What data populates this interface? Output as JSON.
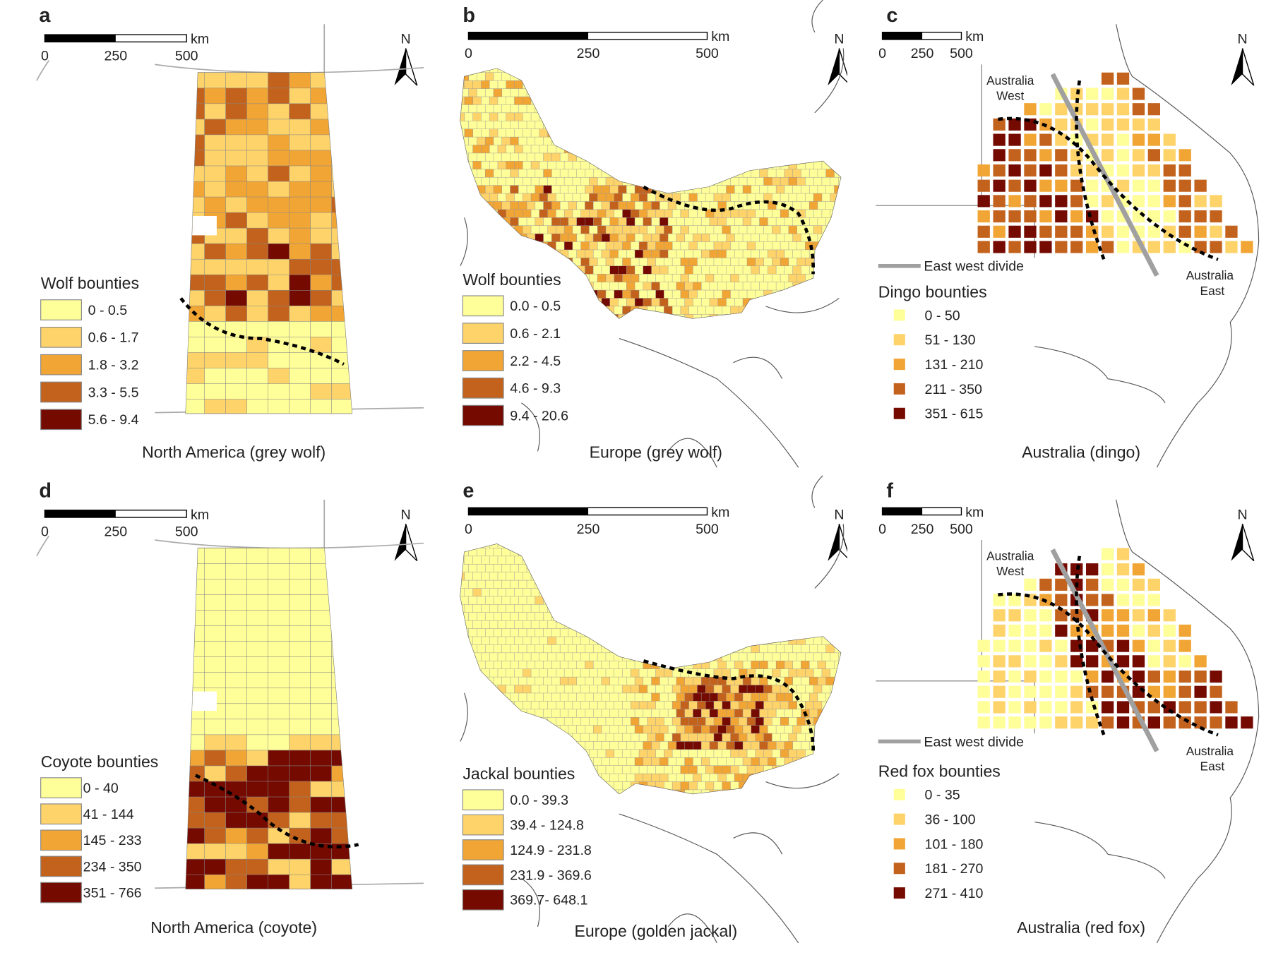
{
  "colors": [
    "#ffff99",
    "#fdd36a",
    "#f1a534",
    "#c2621c",
    "#740a00"
  ],
  "divide_color": "#a0a0a0",
  "panels": [
    {
      "letter": "a",
      "type": "na",
      "caption": "North America (grey wolf)",
      "legend_title": "Wolf bounties",
      "legend": [
        "0 - 0.5",
        "0.6 - 1.7",
        "1.8 - 3.2",
        "3.3 - 5.5",
        "5.6 - 9.4"
      ],
      "scale": {
        "labels": [
          "0",
          "250",
          "500"
        ],
        "unit": "km"
      },
      "north": "N"
    },
    {
      "letter": "b",
      "type": "eu",
      "caption": "Europe (grey wolf)",
      "legend_title": "Wolf bounties",
      "legend": [
        "0.0 - 0.5",
        "0.6 - 2.1",
        "2.2 - 4.5",
        "4.6 - 9.3",
        "9.4 - 20.6"
      ],
      "scale": {
        "labels": [
          "0",
          "250",
          "500"
        ],
        "unit": "km"
      },
      "north": "N"
    },
    {
      "letter": "c",
      "type": "au",
      "caption": "Australia (dingo)",
      "legend_title": "Dingo bounties",
      "legend": [
        "0 - 50",
        "51 - 130",
        "131 - 210",
        "211 - 350",
        "351 - 615"
      ],
      "scale": {
        "labels": [
          "0",
          "250",
          "500"
        ],
        "unit": "km"
      },
      "north": "N",
      "west": [
        "Australia",
        "West"
      ],
      "east": [
        "Australia",
        "East"
      ],
      "divide_label": "East west divide"
    },
    {
      "letter": "d",
      "type": "na",
      "caption": "North America (coyote)",
      "legend_title": "Coyote bounties",
      "legend": [
        "0 - 40",
        "41 - 144",
        "145 - 233",
        "234 - 350",
        "351 - 766"
      ],
      "scale": {
        "labels": [
          "0",
          "250",
          "500"
        ],
        "unit": "km"
      },
      "north": "N"
    },
    {
      "letter": "e",
      "type": "eu",
      "caption": "Europe (golden jackal)",
      "legend_title": "Jackal bounties",
      "legend": [
        "0.0 - 39.3",
        "39.4 - 124.8",
        "124.9 - 231.8",
        "231.9 - 369.6",
        "369.7- 648.1"
      ],
      "scale": {
        "labels": [
          "0",
          "250",
          "500"
        ],
        "unit": "km"
      },
      "north": "N"
    },
    {
      "letter": "f",
      "type": "au",
      "caption": "Australia (red fox)",
      "legend_title": "Red fox bounties",
      "legend": [
        "0 - 35",
        "36 - 100",
        "101 - 180",
        "181 - 270",
        "271 - 410"
      ],
      "scale": {
        "labels": [
          "0",
          "250",
          "500"
        ],
        "unit": "km"
      },
      "north": "N",
      "west": [
        "Australia",
        "West"
      ],
      "east": [
        "Australia",
        "East"
      ],
      "divide_label": "East west divide"
    }
  ]
}
